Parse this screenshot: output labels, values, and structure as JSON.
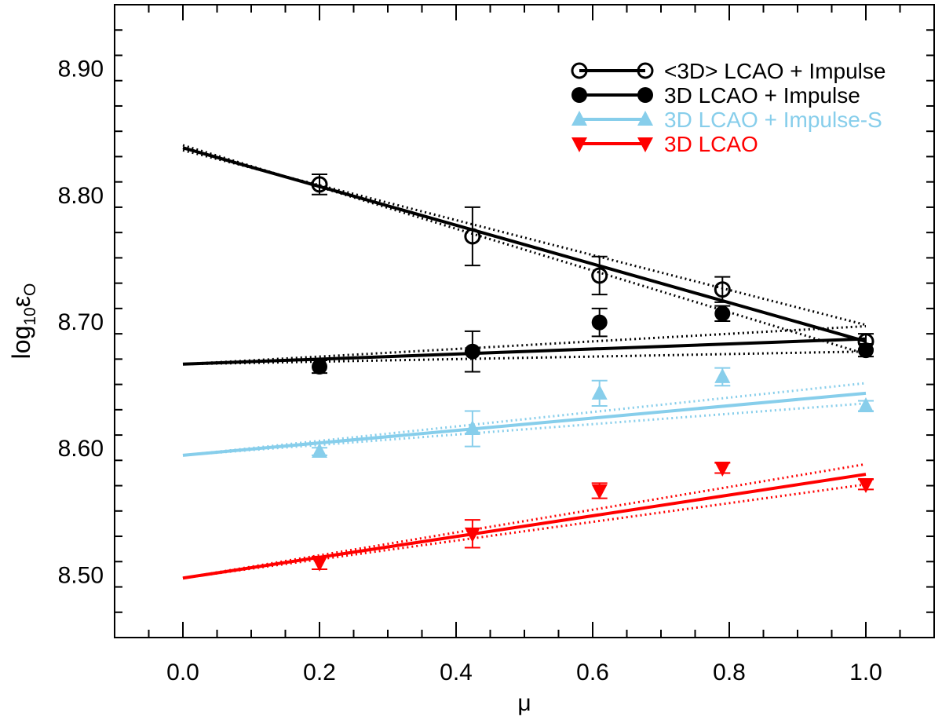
{
  "chart_data": {
    "type": "scatter",
    "xlabel": "μ",
    "ylabel_base": "log",
    "ylabel_sub1": "10",
    "ylabel_mid": "ε",
    "ylabel_sub2": "O",
    "xlim": [
      -0.1,
      1.1
    ],
    "ylim": [
      8.45,
      8.95
    ],
    "x_ticks": [
      0.0,
      0.2,
      0.4,
      0.6,
      0.8,
      1.0
    ],
    "x_tick_labels": [
      "0.0",
      "0.2",
      "0.4",
      "0.6",
      "0.8",
      "1.0"
    ],
    "y_ticks": [
      8.5,
      8.6,
      8.7,
      8.8,
      8.9
    ],
    "y_tick_labels": [
      "8.50",
      "8.60",
      "8.70",
      "8.80",
      "8.90"
    ],
    "legend_position": "top-right",
    "series": [
      {
        "name": "<3D> LCAO + Impulse",
        "color": "#000000",
        "marker": "open-circle",
        "x": [
          0.2,
          0.424,
          0.61,
          0.79,
          1.0
        ],
        "y": [
          8.808,
          8.767,
          8.736,
          8.725,
          8.684
        ],
        "err": [
          0.008,
          0.023,
          0.015,
          0.01,
          0.006
        ],
        "fit": {
          "x": [
            0.0,
            1.0
          ],
          "y": [
            8.837,
            8.684
          ]
        },
        "fit_band": [
          {
            "x": [
              0.0,
              1.0
            ],
            "y": [
              8.835,
              8.697
            ]
          },
          {
            "x": [
              0.0,
              1.0
            ],
            "y": [
              8.839,
              8.674
            ]
          }
        ]
      },
      {
        "name": "3D LCAO + Impulse",
        "color": "#000000",
        "marker": "filled-circle",
        "x": [
          0.2,
          0.424,
          0.61,
          0.79,
          1.0
        ],
        "y": [
          8.664,
          8.676,
          8.699,
          8.706,
          8.677
        ],
        "err": [
          0.005,
          0.016,
          0.011,
          0.006,
          0.005
        ],
        "fit": {
          "x": [
            0.0,
            1.0
          ],
          "y": [
            8.666,
            8.686
          ]
        },
        "fit_band": [
          {
            "x": [
              0.0,
              1.0
            ],
            "y": [
              8.666,
              8.696
            ]
          },
          {
            "x": [
              0.0,
              1.0
            ],
            "y": [
              8.666,
              8.676
            ]
          }
        ]
      },
      {
        "name": "3D LCAO + Impulse-S",
        "color": "#87ceeb",
        "marker": "filled-triangle-up",
        "x": [
          0.2,
          0.424,
          0.61,
          0.79,
          1.0
        ],
        "y": [
          8.597,
          8.615,
          8.643,
          8.656,
          8.633
        ],
        "err": [
          0.003,
          0.014,
          0.01,
          0.007,
          0.004
        ],
        "fit": {
          "x": [
            0.0,
            1.0
          ],
          "y": [
            8.594,
            8.643
          ]
        },
        "fit_band": [
          {
            "x": [
              0.0,
              1.0
            ],
            "y": [
              8.594,
              8.651
            ]
          },
          {
            "x": [
              0.0,
              1.0
            ],
            "y": [
              8.594,
              8.635
            ]
          }
        ]
      },
      {
        "name": "3D LCAO",
        "color": "#ff0000",
        "marker": "filled-triangle-down",
        "x": [
          0.2,
          0.424,
          0.61,
          0.79,
          1.0
        ],
        "y": [
          8.509,
          8.532,
          8.566,
          8.584,
          8.571
        ],
        "err": [
          0.005,
          0.011,
          0.006,
          0.004,
          0.004
        ],
        "fit": {
          "x": [
            0.0,
            1.0
          ],
          "y": [
            8.497,
            8.579
          ]
        },
        "fit_band": [
          {
            "x": [
              0.0,
              1.0
            ],
            "y": [
              8.497,
              8.587
            ]
          },
          {
            "x": [
              0.0,
              1.0
            ],
            "y": [
              8.497,
              8.571
            ]
          }
        ]
      }
    ]
  }
}
